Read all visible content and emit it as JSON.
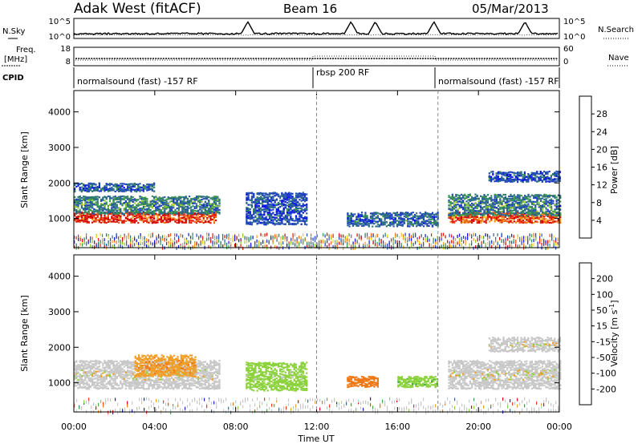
{
  "header": {
    "station": "Adak West (fitACF)",
    "beam": "Beam 16",
    "date": "05/Mar/2013"
  },
  "left_labels": {
    "nsky": "N.Sky",
    "freq_line1": "Freq.",
    "freq_line2": "[MHz]",
    "cpid": "CPID"
  },
  "right_labels": {
    "nsearch": "N.Search",
    "nave": "Nave"
  },
  "noise_panel": {
    "ticks_left": [
      "10^5",
      "10^0"
    ],
    "ticks_right": [
      "10^5",
      "10^0"
    ]
  },
  "freq_panel": {
    "ticks_left": [
      "18",
      "8"
    ],
    "ticks_right": [
      "60",
      "0"
    ]
  },
  "cpid_segments": [
    {
      "label": "normalsound (fast) -157 RF",
      "start_hour": 0
    },
    {
      "label": "rbsp 200 RF",
      "start_hour": 12
    },
    {
      "label": "normalsound (fast) -157 RF",
      "start_hour": 18
    }
  ],
  "colors": {
    "power": [
      "#0a14e6",
      "#1e3cc8",
      "#2a5aa8",
      "#2f7a6e",
      "#3a9a48",
      "#8cc82a",
      "#f0d21e",
      "#f0a01e",
      "#f06414",
      "#e61e0a",
      "#d20000"
    ],
    "velocity": [
      "#e60000",
      "#f03c14",
      "#f07814",
      "#f0a028",
      "#c8c8c8",
      "#8cd23c",
      "#3ca83c",
      "#2a6eaa",
      "#1428c8"
    ]
  },
  "chart_data": [
    {
      "type": "heatmap",
      "panel": "power",
      "x": {
        "label": "Time UT",
        "range_hours": [
          0,
          24
        ],
        "tick_hours": [
          0,
          4,
          8,
          12,
          16,
          20,
          24
        ],
        "tick_labels": [
          "00:00",
          "04:00",
          "08:00",
          "12:00",
          "16:00",
          "20:00",
          "00:00"
        ]
      },
      "y": {
        "label": "Slant Range [km]",
        "range_km": [
          180,
          4600
        ],
        "ticks": [
          1000,
          2000,
          3000,
          4000
        ]
      },
      "colorbar": {
        "label": "Power [dB]",
        "range": [
          0,
          32
        ],
        "ticks": [
          4,
          8,
          12,
          16,
          20,
          24,
          28
        ]
      },
      "scatter_bands": [
        {
          "t0": 0.0,
          "t1": 7.0,
          "r_center": 1050,
          "r_halfwidth": 150,
          "level": 28
        },
        {
          "t0": 0.0,
          "t1": 7.2,
          "r_center": 1400,
          "r_halfwidth": 250,
          "level": 10
        },
        {
          "t0": 0.0,
          "t1": 4.0,
          "r_center": 1900,
          "r_halfwidth": 120,
          "level": 7
        },
        {
          "t0": 8.5,
          "t1": 11.5,
          "r_center": 1300,
          "r_halfwidth": 450,
          "level": 6
        },
        {
          "t0": 13.5,
          "t1": 18.0,
          "r_center": 1000,
          "r_halfwidth": 200,
          "level": 8
        },
        {
          "t0": 18.5,
          "t1": 24.0,
          "r_center": 1050,
          "r_halfwidth": 150,
          "level": 26
        },
        {
          "t0": 18.5,
          "t1": 24.0,
          "r_center": 1400,
          "r_halfwidth": 300,
          "level": 10
        },
        {
          "t0": 20.5,
          "t1": 24.0,
          "r_center": 2200,
          "r_halfwidth": 150,
          "level": 6
        }
      ],
      "ground_scatter_band": {
        "t0": 0,
        "t1": 24,
        "r_min": 200,
        "r_max": 600
      }
    },
    {
      "type": "heatmap",
      "panel": "velocity",
      "x": {
        "label": "Time UT",
        "range_hours": [
          0,
          24
        ],
        "tick_hours": [
          0,
          4,
          8,
          12,
          16,
          20,
          24
        ],
        "tick_labels": [
          "00:00",
          "04:00",
          "08:00",
          "12:00",
          "16:00",
          "20:00",
          "00:00"
        ]
      },
      "y": {
        "label": "Slant Range [km]",
        "range_km": [
          180,
          4600
        ],
        "ticks": [
          1000,
          2000,
          3000,
          4000
        ]
      },
      "colorbar": {
        "label": "Velocity [m s^-1]",
        "ticks": [
          200,
          100,
          50,
          15,
          -15,
          -50,
          -100,
          -200
        ]
      },
      "scatter_bands": [
        {
          "t0": 0.0,
          "t1": 7.2,
          "r_center": 1250,
          "r_halfwidth": 400,
          "level": 0
        },
        {
          "t0": 3.0,
          "t1": 6.0,
          "r_center": 1500,
          "r_halfwidth": 300,
          "level": -40
        },
        {
          "t0": 8.5,
          "t1": 11.5,
          "r_center": 1200,
          "r_halfwidth": 400,
          "level": 30
        },
        {
          "t0": 13.5,
          "t1": 15.0,
          "r_center": 1050,
          "r_halfwidth": 150,
          "level": -80
        },
        {
          "t0": 16.0,
          "t1": 18.0,
          "r_center": 1050,
          "r_halfwidth": 150,
          "level": 40
        },
        {
          "t0": 18.5,
          "t1": 24.0,
          "r_center": 1250,
          "r_halfwidth": 400,
          "level": 0
        },
        {
          "t0": 20.5,
          "t1": 24.0,
          "r_center": 2100,
          "r_halfwidth": 200,
          "level": 0
        }
      ]
    }
  ]
}
